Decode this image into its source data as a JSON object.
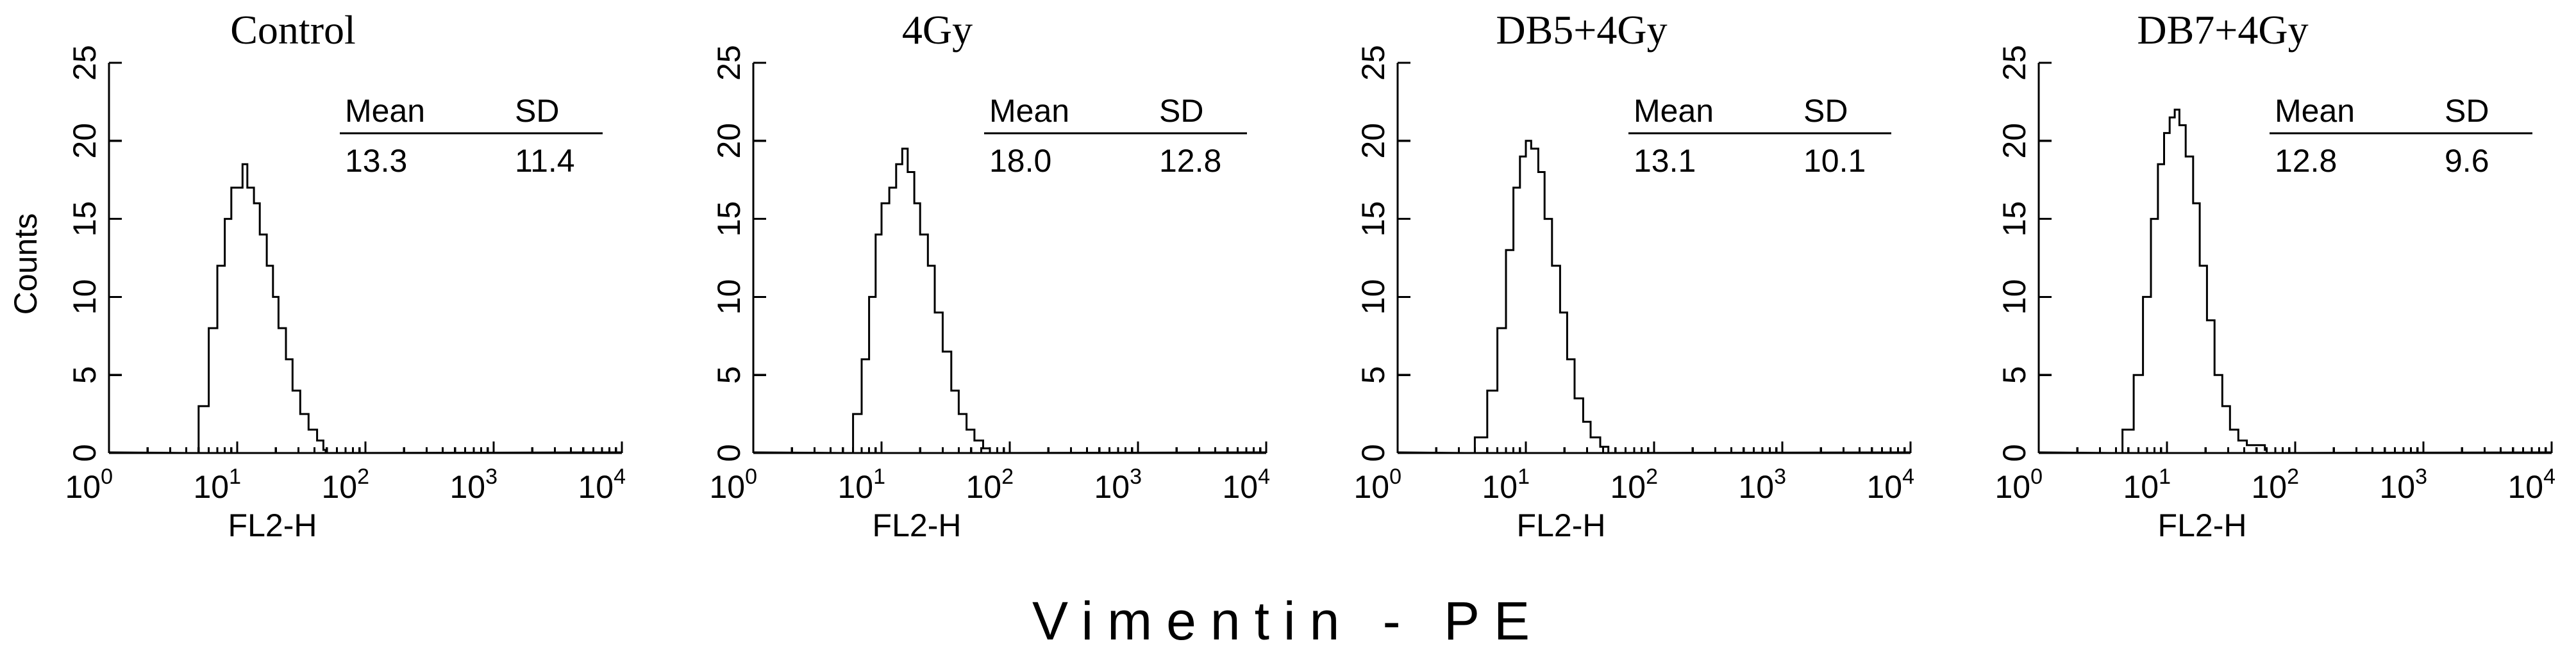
{
  "chart_data": [
    {
      "type": "histogram",
      "title": "Control",
      "xlabel": "FL2-H",
      "ylabel": "Counts",
      "x_scale": "log",
      "xlim": [
        1,
        10000
      ],
      "ylim": [
        0,
        25
      ],
      "yticks": [
        0,
        5,
        10,
        15,
        20,
        25
      ],
      "xticks": [
        {
          "base": "10",
          "exp": "0"
        },
        {
          "base": "10",
          "exp": "1"
        },
        {
          "base": "10",
          "exp": "2"
        },
        {
          "base": "10",
          "exp": "3"
        },
        {
          "base": "10",
          "exp": "4"
        }
      ],
      "stats": {
        "mean_label": "Mean",
        "sd_label": "SD",
        "mean": "13.3",
        "sd": "11.4"
      },
      "x": [
        4.2,
        5,
        6,
        7,
        8,
        9,
        10,
        11,
        12,
        13.5,
        15,
        17,
        19,
        21,
        24,
        27,
        31,
        36,
        42,
        47,
        49
      ],
      "counts": [
        0,
        3,
        8,
        12,
        15,
        17,
        17,
        18.5,
        17,
        16,
        14,
        12,
        10,
        8,
        6,
        4,
        2.5,
        1.5,
        0.8,
        0.2,
        0
      ]
    },
    {
      "type": "histogram",
      "title": "4Gy",
      "xlabel": "FL2-H",
      "ylabel": "Counts",
      "x_scale": "log",
      "xlim": [
        1,
        10000
      ],
      "ylim": [
        0,
        25
      ],
      "yticks": [
        0,
        5,
        10,
        15,
        20,
        25
      ],
      "xticks": [
        {
          "base": "10",
          "exp": "0"
        },
        {
          "base": "10",
          "exp": "1"
        },
        {
          "base": "10",
          "exp": "2"
        },
        {
          "base": "10",
          "exp": "3"
        },
        {
          "base": "10",
          "exp": "4"
        }
      ],
      "stats": {
        "mean_label": "Mean",
        "sd_label": "SD",
        "mean": "18.0",
        "sd": "12.8"
      },
      "x": [
        5,
        6,
        7,
        8,
        9,
        10,
        11.5,
        13,
        14.5,
        16,
        18,
        20,
        23,
        26,
        30,
        35,
        40,
        46,
        53,
        62,
        70
      ],
      "counts": [
        0,
        2.5,
        6,
        10,
        14,
        16,
        17,
        18.5,
        19.5,
        18,
        16,
        14,
        12,
        9,
        6.5,
        4,
        2.5,
        1.5,
        0.8,
        0.3,
        0
      ]
    },
    {
      "type": "histogram",
      "title": "DB5+4Gy",
      "xlabel": "FL2-H",
      "ylabel": "Counts",
      "x_scale": "log",
      "xlim": [
        1,
        10000
      ],
      "ylim": [
        0,
        25
      ],
      "yticks": [
        0,
        5,
        10,
        15,
        20,
        25
      ],
      "xticks": [
        {
          "base": "10",
          "exp": "0"
        },
        {
          "base": "10",
          "exp": "1"
        },
        {
          "base": "10",
          "exp": "2"
        },
        {
          "base": "10",
          "exp": "3"
        },
        {
          "base": "10",
          "exp": "4"
        }
      ],
      "stats": {
        "mean_label": "Mean",
        "sd_label": "SD",
        "mean": "13.1",
        "sd": "10.1"
      },
      "x": [
        3.3,
        4,
        5,
        6,
        7,
        8,
        9,
        10,
        11,
        12.5,
        14,
        16,
        18.5,
        21,
        24,
        28,
        32,
        38,
        44
      ],
      "counts": [
        0,
        1,
        4,
        8,
        13,
        17,
        19,
        20,
        19.5,
        18,
        15,
        12,
        9,
        6,
        3.5,
        2,
        1,
        0.4,
        0
      ]
    },
    {
      "type": "histogram",
      "title": "DB7+4Gy",
      "xlabel": "FL2-H",
      "ylabel": "Counts",
      "x_scale": "log",
      "xlim": [
        1,
        10000
      ],
      "ylim": [
        0,
        25
      ],
      "yticks": [
        0,
        5,
        10,
        15,
        20,
        25
      ],
      "xticks": [
        {
          "base": "10",
          "exp": "0"
        },
        {
          "base": "10",
          "exp": "1"
        },
        {
          "base": "10",
          "exp": "2"
        },
        {
          "base": "10",
          "exp": "3"
        },
        {
          "base": "10",
          "exp": "4"
        }
      ],
      "stats": {
        "mean_label": "Mean",
        "sd_label": "SD",
        "mean": "12.8",
        "sd": "9.6"
      },
      "x": [
        3.7,
        4.5,
        5.5,
        6.5,
        7.5,
        8.5,
        9.5,
        10.5,
        11.5,
        12.5,
        14,
        16,
        18,
        20.5,
        23.5,
        27,
        31,
        36,
        42,
        50,
        58,
        60
      ],
      "counts": [
        0,
        1.5,
        5,
        10,
        15,
        18.5,
        20.5,
        21.5,
        22,
        21,
        19,
        16,
        12,
        8.5,
        5,
        3,
        1.5,
        0.8,
        0.5,
        0.5,
        0.2,
        0
      ]
    }
  ],
  "figure": {
    "bottom_label": "Vimentin - PE"
  }
}
